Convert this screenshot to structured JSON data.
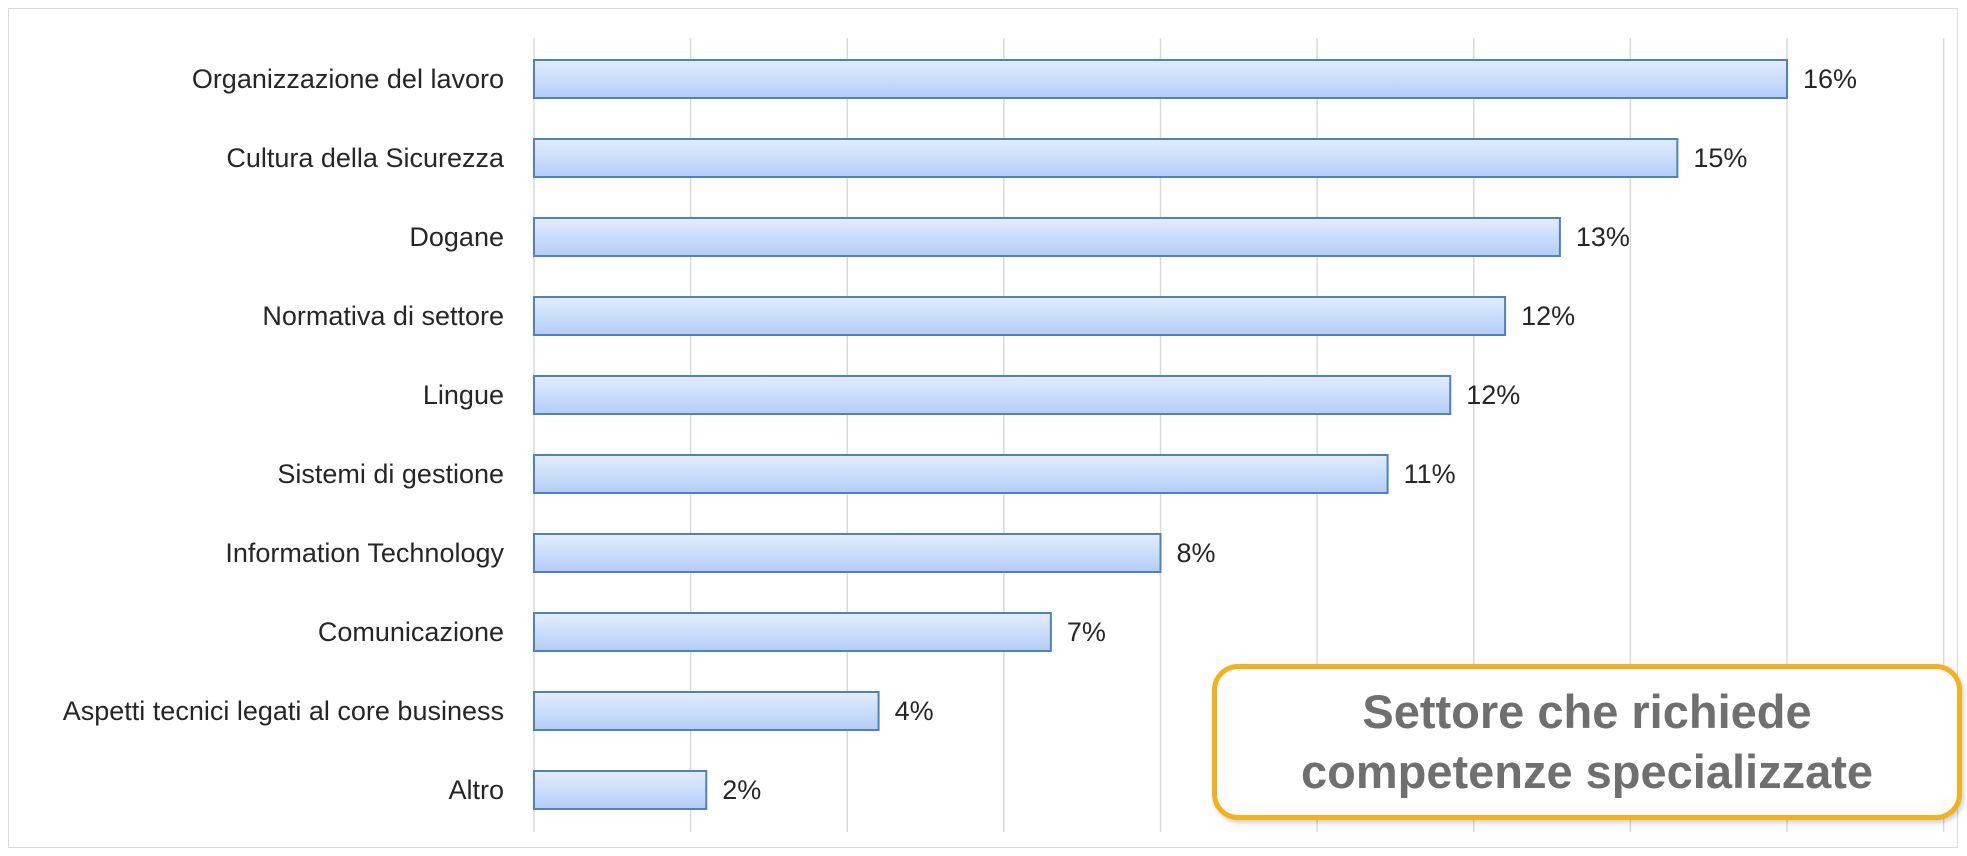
{
  "chart_data": {
    "type": "bar",
    "orientation": "horizontal",
    "categories": [
      "Organizzazione del lavoro",
      "Cultura della Sicurezza",
      "Dogane",
      "Normativa di settore",
      "Lingue",
      "Sistemi di gestione",
      "Information Technology",
      "Comunicazione",
      "Aspetti tecnici legati al core business",
      "Altro"
    ],
    "values": [
      16,
      14.6,
      13.1,
      12.4,
      11.7,
      10.9,
      8,
      6.6,
      4.4,
      2.2
    ],
    "value_labels": [
      "16%",
      "15%",
      "13%",
      "12%",
      "12%",
      "11%",
      "8%",
      "7%",
      "4%",
      "2%"
    ],
    "xlim": [
      0,
      18
    ],
    "grid": true,
    "bar_color": "#c7dcfb",
    "bar_border_color": "#4f81bd",
    "gridline_color": "#d9d9d9"
  },
  "callout": {
    "line1": "Settore che richiede",
    "line2": "competenze specializzate",
    "border_color": "#f3b21b",
    "text_color": "#6f6f6f"
  }
}
